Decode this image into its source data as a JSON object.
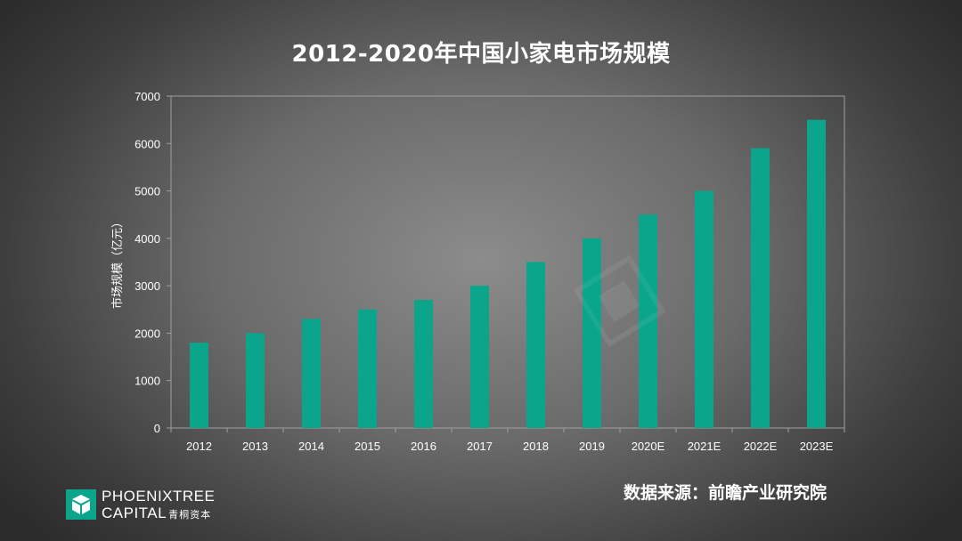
{
  "chart_data": {
    "type": "bar",
    "title": "2012-2020年中国小家电市场规模",
    "ylabel": "市场规模（亿元）",
    "xlabel": "",
    "categories": [
      "2012",
      "2013",
      "2014",
      "2015",
      "2016",
      "2017",
      "2018",
      "2019",
      "2020E",
      "2021E",
      "2022E",
      "2023E"
    ],
    "values": [
      1800,
      2000,
      2300,
      2500,
      2700,
      3000,
      3500,
      4000,
      4500,
      5000,
      5900,
      6500
    ],
    "ylim": [
      0,
      7000
    ],
    "yticks": [
      0,
      1000,
      2000,
      3000,
      4000,
      5000,
      6000,
      7000
    ],
    "bar_color": "#0aa58a",
    "grid": false,
    "legend": "none"
  },
  "source": "数据来源：前瞻产业研究院",
  "logo": {
    "line1": "PHOENIXTREE",
    "line2": "CAPITAL",
    "cn": "青桐资本",
    "color": "#0aa58a"
  }
}
